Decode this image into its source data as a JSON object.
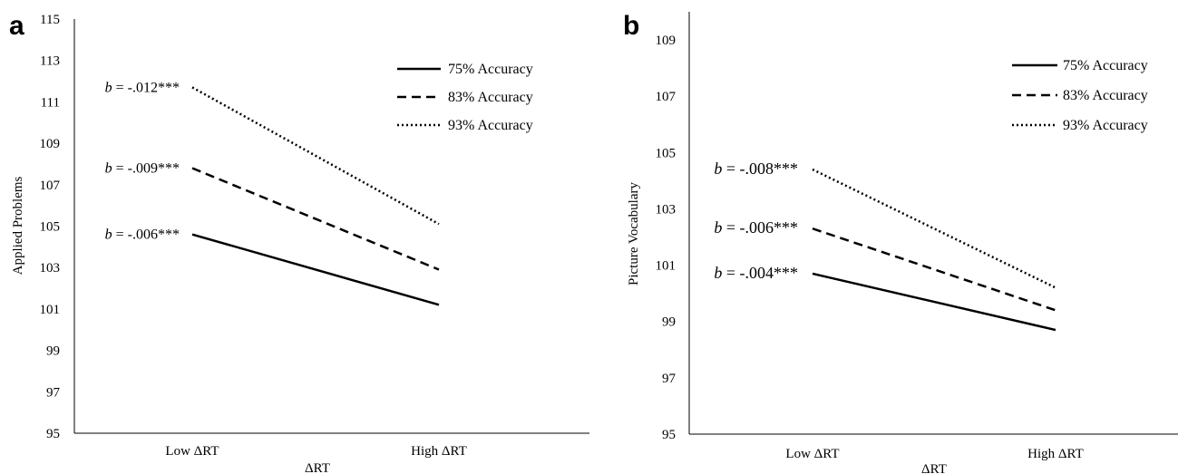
{
  "chart_data": [
    {
      "panel": "a",
      "type": "line",
      "xlabel": "ΔRT",
      "ylabel": "Applied Problems",
      "categories": [
        "Low ΔRT",
        "High ΔRT"
      ],
      "ylim": [
        95,
        115
      ],
      "yticks": [
        95,
        97,
        99,
        101,
        103,
        105,
        107,
        109,
        111,
        113,
        115
      ],
      "legend_position": "top-right",
      "grid": false,
      "series": [
        {
          "name": "75% Accuracy",
          "style": "solid",
          "values": [
            104.6,
            101.2
          ],
          "annotation": "= -.006***"
        },
        {
          "name": "83% Accuracy",
          "style": "dashed",
          "values": [
            107.8,
            102.9
          ],
          "annotation": "= -.009***"
        },
        {
          "name": "93% Accuracy",
          "style": "dotted",
          "values": [
            111.7,
            105.1
          ],
          "annotation": "= -.012***"
        }
      ]
    },
    {
      "panel": "b",
      "type": "line",
      "xlabel": "ΔRT",
      "ylabel": "Picture Vocabulary",
      "categories": [
        "Low ΔRT",
        "High ΔRT"
      ],
      "ylim": [
        95,
        110
      ],
      "yticks": [
        95,
        97,
        99,
        101,
        103,
        105,
        107,
        109
      ],
      "legend_position": "top-right",
      "grid": false,
      "series": [
        {
          "name": "75% Accuracy",
          "style": "solid",
          "values": [
            100.7,
            98.7
          ],
          "annotation": "= -.004***"
        },
        {
          "name": "83% Accuracy",
          "style": "dashed",
          "values": [
            102.3,
            99.4
          ],
          "annotation": "= -.006***"
        },
        {
          "name": "93% Accuracy",
          "style": "dotted",
          "values": [
            104.4,
            100.2
          ],
          "annotation": "= -.008***"
        }
      ]
    }
  ],
  "annotation_prefix": "b",
  "colors": {
    "line": "#000000",
    "axis": "#000000",
    "background": "#ffffff"
  }
}
